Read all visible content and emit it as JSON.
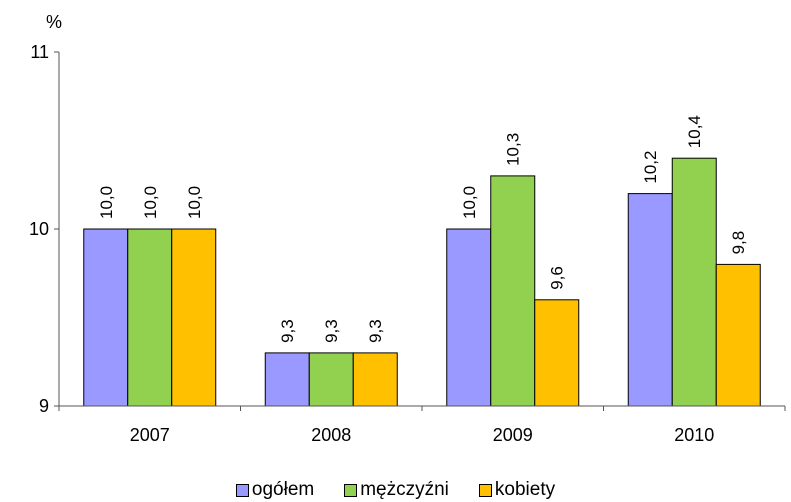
{
  "chart_data": {
    "type": "bar",
    "title": "",
    "xlabel": "",
    "ylabel": "%",
    "ylim": [
      9,
      11
    ],
    "yticks": [
      "9",
      "10",
      "11"
    ],
    "grid": false,
    "legend_position": "bottom",
    "categories": [
      "2007",
      "2008",
      "2009",
      "2010"
    ],
    "series": [
      {
        "name": "ogółem",
        "color": "#9999FF",
        "values": [
          10.0,
          9.3,
          10.0,
          10.2
        ],
        "labels": [
          "10,0",
          "9,3",
          "10,0",
          "10,2"
        ]
      },
      {
        "name": "mężczyźni",
        "color": "#92D050",
        "values": [
          10.0,
          9.3,
          10.3,
          10.4
        ],
        "labels": [
          "10,0",
          "9,3",
          "10,3",
          "10,4"
        ]
      },
      {
        "name": "kobiety",
        "color": "#FFC000",
        "values": [
          10.0,
          9.3,
          9.6,
          9.8
        ],
        "labels": [
          "10,0",
          "9,3",
          "9,6",
          "9,8"
        ]
      }
    ]
  }
}
